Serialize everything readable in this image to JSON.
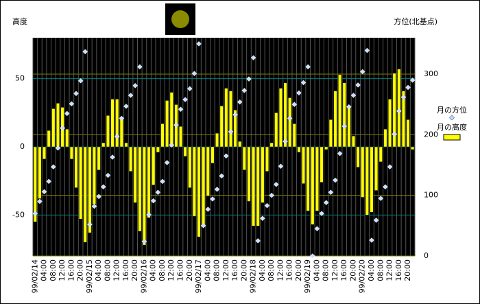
{
  "chart_data": {
    "type": "combo",
    "y_label": "高度",
    "y2_label": "方位(北基点)",
    "categories": [
      "99/02/14",
      null,
      "04:00",
      null,
      "08:00",
      null,
      "12:00",
      null,
      "16:00",
      null,
      "20:00",
      null,
      "99/02/15",
      null,
      "04:00",
      null,
      "08:00",
      null,
      "12:00",
      null,
      "16:00",
      null,
      "20:00",
      null,
      "99/02/16",
      null,
      "04:00",
      null,
      "08:00",
      null,
      "12:00",
      null,
      "16:00",
      null,
      "20:00",
      null,
      "99/02/17",
      null,
      "04:00",
      null,
      "08:00",
      null,
      "12:00",
      null,
      "16:00",
      null,
      "20:00",
      null,
      "99/02/18",
      null,
      "04:00",
      null,
      "08:00",
      null,
      "12:00",
      null,
      "16:00",
      null,
      "20:00",
      null,
      "99/02/19",
      null,
      "04:00",
      null,
      "08:00",
      null,
      "12:00",
      null,
      "16:00",
      null,
      "20:00",
      null,
      "99/02/20",
      null,
      "04:00",
      null,
      "08:00",
      null,
      "12:00",
      null,
      "16:00",
      null,
      "20:00",
      null
    ],
    "series": [
      {
        "name": "月の方位",
        "type": "scatter",
        "axis": "y2",
        "color": "#c8e0ff",
        "values": [
          70,
          90,
          106,
          123,
          147,
          178,
          211,
          235,
          251,
          268,
          289,
          337,
          52,
          82,
          98,
          114,
          133,
          163,
          197,
          227,
          247,
          265,
          281,
          312,
          24,
          68,
          91,
          105,
          123,
          154,
          183,
          216,
          242,
          258,
          276,
          301,
          350,
          50,
          77,
          94,
          110,
          132,
          165,
          205,
          233,
          254,
          273,
          292,
          327,
          25,
          62,
          83,
          100,
          118,
          148,
          189,
          227,
          250,
          269,
          286,
          312,
          0,
          45,
          70,
          88,
          105,
          125,
          169,
          214,
          246,
          265,
          282,
          304,
          339,
          26,
          59,
          95,
          114,
          147,
          201,
          239,
          262,
          278,
          290
        ]
      },
      {
        "name": "月の高度",
        "type": "bar",
        "color": "#ffff00",
        "values": [
          -55,
          -38,
          -9,
          12,
          28,
          32,
          29,
          13,
          -9,
          -30,
          -53,
          -70,
          -63,
          -42,
          -17,
          3,
          23,
          35,
          35,
          22,
          3,
          -18,
          -41,
          -62,
          -72,
          -52,
          -28,
          -4,
          17,
          34,
          40,
          31,
          15,
          -7,
          -30,
          -51,
          -66,
          -58,
          -36,
          -12,
          10,
          30,
          43,
          41,
          27,
          4,
          -17,
          -40,
          -58,
          -58,
          -41,
          -18,
          3,
          25,
          43,
          47,
          36,
          17,
          -4,
          -27,
          -47,
          -57,
          -47,
          -26,
          -2,
          20,
          41,
          53,
          47,
          29,
          8,
          -15,
          -37,
          -50,
          -48,
          -32,
          -11,
          13,
          35,
          54,
          57,
          41,
          20,
          -2
        ]
      }
    ],
    "ylim": [
      -80,
      80
    ],
    "yticks": [
      -50,
      0,
      50
    ],
    "y2lim": [
      0,
      360
    ],
    "y2ticks": [
      0,
      100,
      200,
      300
    ],
    "grid": true
  }
}
